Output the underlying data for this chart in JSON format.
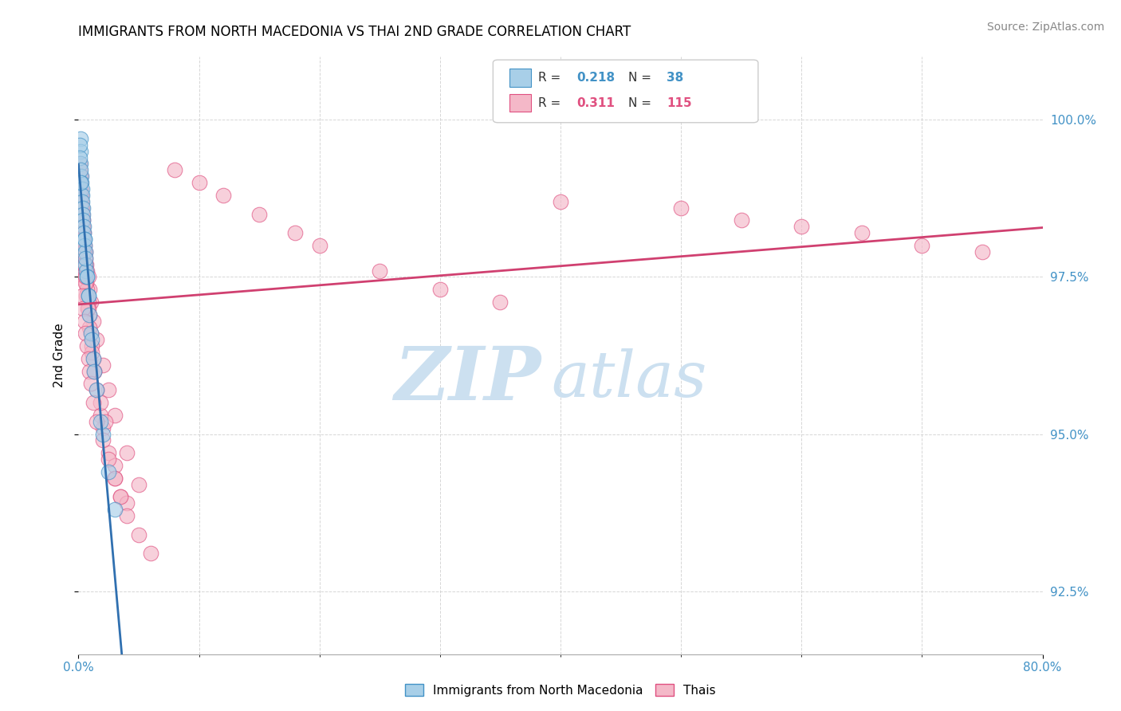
{
  "title": "IMMIGRANTS FROM NORTH MACEDONIA VS THAI 2ND GRADE CORRELATION CHART",
  "source_text": "Source: ZipAtlas.com",
  "ylabel": "2nd Grade",
  "xlim": [
    0.0,
    80.0
  ],
  "ylim": [
    91.5,
    101.0
  ],
  "yticks": [
    92.5,
    95.0,
    97.5,
    100.0
  ],
  "ytick_labels": [
    "92.5%",
    "95.0%",
    "97.5%",
    "100.0%"
  ],
  "xtick_labels": [
    "0.0%",
    "80.0%"
  ],
  "color_blue": "#a8cfe8",
  "color_pink": "#f4b8c8",
  "color_blue_dark": "#4292c6",
  "color_pink_dark": "#e05080",
  "color_trendline_blue": "#3070b0",
  "color_trendline_pink": "#d04070",
  "watermark_zip": "ZIP",
  "watermark_atlas": "atlas",
  "watermark_color": "#cce0f0",
  "north_mac_x": [
    0.15,
    0.18,
    0.2,
    0.22,
    0.25,
    0.28,
    0.3,
    0.32,
    0.35,
    0.38,
    0.4,
    0.42,
    0.45,
    0.48,
    0.5,
    0.55,
    0.6,
    0.65,
    0.7,
    0.8,
    0.9,
    1.0,
    1.2,
    1.5,
    2.0,
    2.5,
    3.0,
    0.1,
    0.12,
    0.14,
    0.16,
    0.5,
    0.6,
    0.7,
    0.8,
    1.1,
    1.3,
    1.8
  ],
  "north_mac_y": [
    99.7,
    99.5,
    99.3,
    99.1,
    99.0,
    98.9,
    98.8,
    98.7,
    98.6,
    98.5,
    98.4,
    98.3,
    98.2,
    98.1,
    98.0,
    97.9,
    97.7,
    97.6,
    97.5,
    97.2,
    96.9,
    96.6,
    96.2,
    95.7,
    95.0,
    94.4,
    93.8,
    99.6,
    99.4,
    99.2,
    99.0,
    98.1,
    97.8,
    97.5,
    97.2,
    96.5,
    96.0,
    95.2
  ],
  "thai_x": [
    0.1,
    0.12,
    0.15,
    0.18,
    0.2,
    0.22,
    0.25,
    0.28,
    0.3,
    0.32,
    0.35,
    0.38,
    0.4,
    0.42,
    0.45,
    0.5,
    0.55,
    0.6,
    0.65,
    0.7,
    0.8,
    0.9,
    1.0,
    1.2,
    1.5,
    2.0,
    2.5,
    3.0,
    4.0,
    5.0,
    0.14,
    0.16,
    0.2,
    0.22,
    0.25,
    0.28,
    0.32,
    0.35,
    0.38,
    0.4,
    0.45,
    0.5,
    0.55,
    0.6,
    0.65,
    0.7,
    0.75,
    0.8,
    0.85,
    0.9,
    1.0,
    1.1,
    1.2,
    1.3,
    1.5,
    1.8,
    2.0,
    2.5,
    3.0,
    3.5,
    0.18,
    0.22,
    0.28,
    0.35,
    0.4,
    0.45,
    0.55,
    0.65,
    0.75,
    0.9,
    1.1,
    1.3,
    1.8,
    2.2,
    3.0,
    4.0,
    5.0,
    6.0,
    8.0,
    10.0,
    12.0,
    15.0,
    18.0,
    20.0,
    25.0,
    30.0,
    35.0,
    40.0,
    50.0,
    55.0,
    60.0,
    65.0,
    70.0,
    75.0,
    0.3,
    0.35,
    0.4,
    0.45,
    0.5,
    0.55,
    0.3,
    0.4,
    0.5,
    0.6,
    0.7,
    0.8,
    0.9,
    1.0,
    1.2,
    1.5,
    2.0,
    2.5,
    3.0,
    3.5,
    4.0
  ],
  "thai_y": [
    99.3,
    99.2,
    99.1,
    99.0,
    98.9,
    98.8,
    98.7,
    98.6,
    98.5,
    98.4,
    98.4,
    98.3,
    98.2,
    98.2,
    98.1,
    98.0,
    97.9,
    97.8,
    97.7,
    97.6,
    97.5,
    97.3,
    97.1,
    96.8,
    96.5,
    96.1,
    95.7,
    95.3,
    94.7,
    94.2,
    99.1,
    99.0,
    98.8,
    98.7,
    98.6,
    98.5,
    98.3,
    98.2,
    98.1,
    98.0,
    97.9,
    97.7,
    97.6,
    97.5,
    97.4,
    97.3,
    97.2,
    97.1,
    97.0,
    96.9,
    96.6,
    96.4,
    96.2,
    96.0,
    95.7,
    95.3,
    95.1,
    94.7,
    94.3,
    94.0,
    98.9,
    98.6,
    98.4,
    98.1,
    97.9,
    97.7,
    97.4,
    97.2,
    97.0,
    96.7,
    96.3,
    96.0,
    95.5,
    95.2,
    94.5,
    93.9,
    93.4,
    93.1,
    99.2,
    99.0,
    98.8,
    98.5,
    98.2,
    98.0,
    97.6,
    97.3,
    97.1,
    98.7,
    98.6,
    98.4,
    98.3,
    98.2,
    98.0,
    97.9,
    98.5,
    98.3,
    98.1,
    97.9,
    97.7,
    97.5,
    97.2,
    97.0,
    96.8,
    96.6,
    96.4,
    96.2,
    96.0,
    95.8,
    95.5,
    95.2,
    94.9,
    94.6,
    94.3,
    94.0,
    93.7
  ]
}
